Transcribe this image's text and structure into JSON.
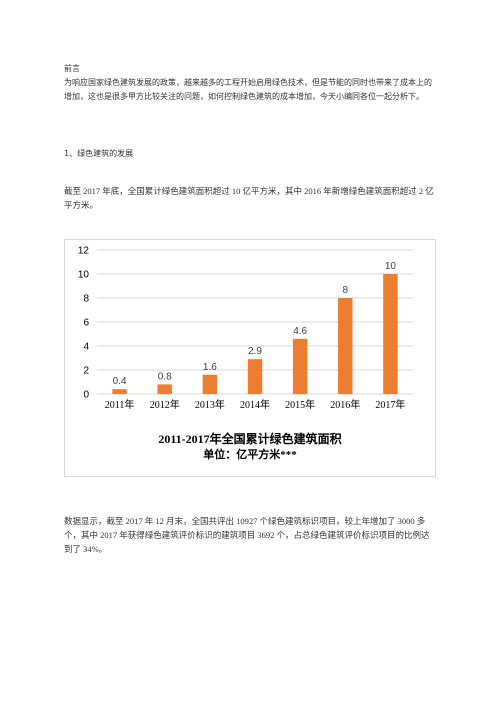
{
  "doc": {
    "heading": "前言",
    "intro": "为响应国家绿色建筑发展的政策，越来越多的工程开始启用绿色技术，但是节能的同时也带来了成本上的增加，这也是很多甲方比较关注的问题，如何控制绿色建筑的成本增加，今天小编同各位一起分析下。",
    "section1": "1、绿色建筑的发展",
    "para1": "截至 2017 年底，全国累计绿色建筑面积超过 10 亿平方米，其中 2016 年新增绿色建筑面积超过 2 亿平方米。",
    "para2": "数据显示，截至 2017 年 12 月末，全国共评出 10927 个绿色建筑标识项目，较上年增加了 3000 多个，其中 2017 年获得绿色建筑评价标识的建筑项目 3692 个，占总绿色建筑评价标识项目的比例达到了 34%。"
  },
  "chart_data": {
    "type": "bar",
    "categories": [
      "2011年",
      "2012年",
      "2013年",
      "2014年",
      "2015年",
      "2016年",
      "2017年"
    ],
    "values": [
      0.4,
      0.8,
      1.6,
      2.9,
      4.6,
      8,
      10
    ],
    "value_labels": [
      "0.4",
      "0.8",
      "1.6",
      "2.9",
      "4.6",
      "8",
      "10"
    ],
    "yticks": [
      "0",
      "2",
      "4",
      "6",
      "8",
      "10",
      "12"
    ],
    "ylim": [
      0,
      12
    ],
    "grid": true,
    "bar_color": "#ed7d31",
    "grid_color": "#d9d9d9",
    "title": "2011-2017年全国累计绿色建筑面积",
    "subtitle": "单位：亿平方米***"
  }
}
